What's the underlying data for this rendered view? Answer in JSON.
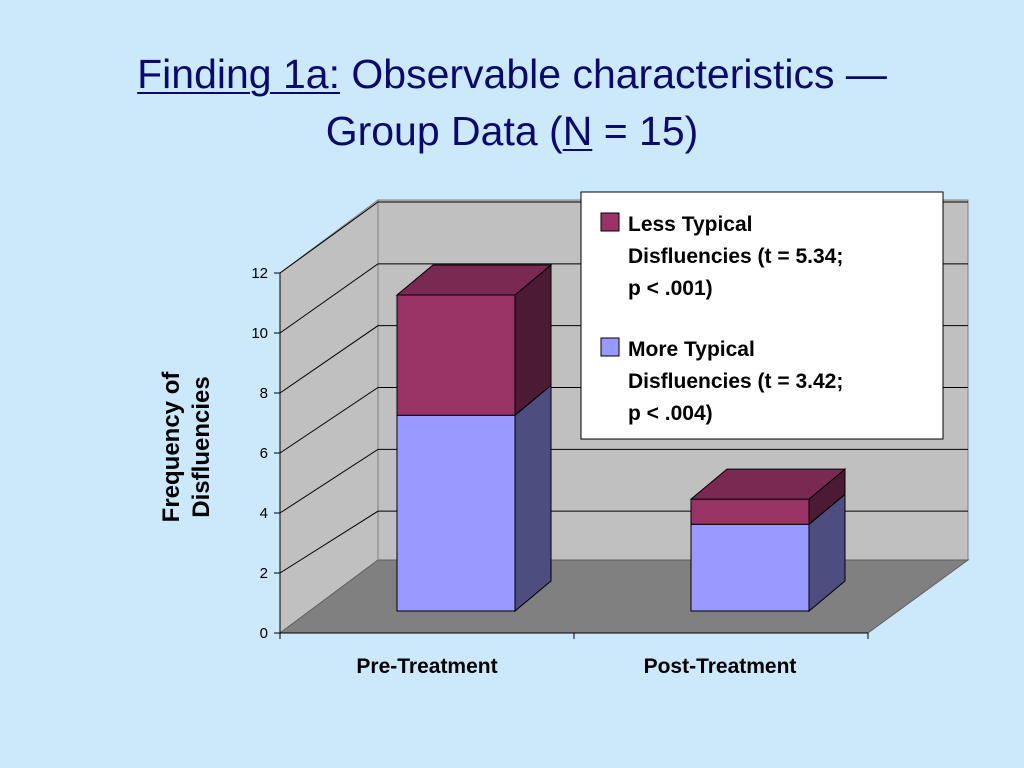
{
  "title": {
    "line1_underlined": "Finding 1a:",
    "line1_rest": " Observable characteristics —",
    "line2_start": "Group Data (",
    "line2_underlined": "N",
    "line2_end": " = 15)"
  },
  "chart_data": {
    "type": "bar",
    "stacked": true,
    "three_d": true,
    "categories": [
      "Pre-Treatment",
      "Post-Treatment"
    ],
    "series": [
      {
        "name": "More Typical Disfluencies (t = 3.42; p < .004)",
        "legend_lines": [
          "More Typical",
          "Disfluencies (t = 3.42;",
          "p < .004)"
        ],
        "values": [
          7.0,
          3.1
        ],
        "color": "#9999ff",
        "side_color": "#4d4d80",
        "top_color": "#9999ff"
      },
      {
        "name": "Less Typical Disfluencies (t = 5.34; p < .001)",
        "legend_lines": [
          "Less Typical",
          "Disfluencies (t = 5.34;",
          "p < .001)"
        ],
        "values": [
          4.3,
          0.9
        ],
        "color": "#993366",
        "side_color": "#4d1a33",
        "top_color": "#7a2952"
      }
    ],
    "xlabel": "",
    "ylabel_lines": [
      "Frequency of",
      "Disfluencies"
    ],
    "ylim": [
      0,
      12
    ],
    "yticks": [
      0,
      2,
      4,
      6,
      8,
      10,
      12
    ],
    "grid": true,
    "legend_position": "top-right",
    "colors": {
      "wall": "#c0c0c0",
      "floor": "#808080",
      "grid": "#000000",
      "background": "#cce9fb",
      "title": "#0a0a6e"
    }
  }
}
